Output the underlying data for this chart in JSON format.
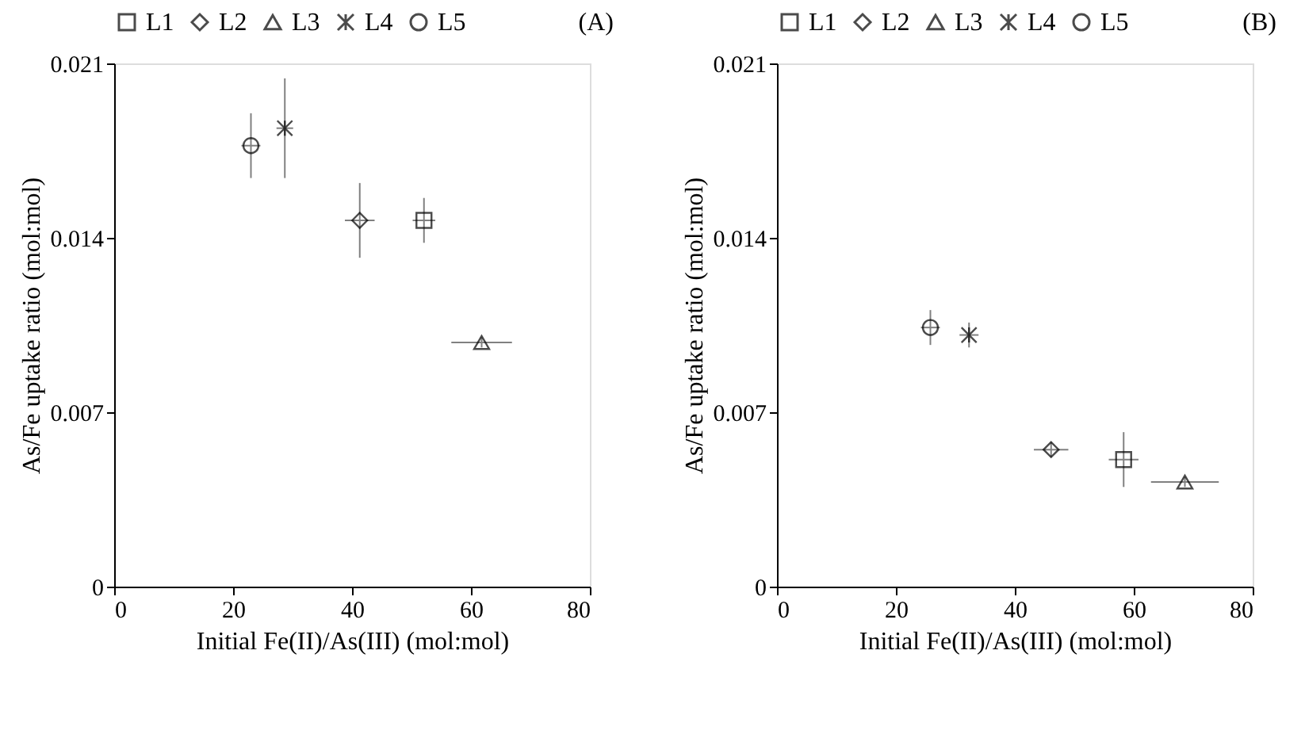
{
  "chart_data": [
    {
      "type": "scatter",
      "xlabel": "Initial Fe(II)/As(III) (mol:mol)",
      "ylabel": "As/Fe uptake ratio (mol:mol)",
      "xlim": [
        0,
        80
      ],
      "xticks": [
        0,
        20,
        40,
        60,
        80
      ],
      "ylim": [
        0,
        0.021
      ],
      "yticks": [
        0,
        0.007,
        0.014,
        0.021
      ],
      "grid": false,
      "legend": "top",
      "annotations": [
        "(A)"
      ],
      "series": [
        {
          "name": "L1",
          "marker": "square",
          "color": "#000000",
          "x": [
            52.1
          ],
          "values": [
            0.0147
          ],
          "errors": [
            0.0009
          ],
          "xerrors": [
            1.9
          ]
        },
        {
          "name": "L2",
          "marker": "diamond",
          "color": "#000000",
          "x": [
            41.3
          ],
          "values": [
            0.0147
          ],
          "errors": [
            0.0015
          ],
          "xerrors": [
            2.5
          ]
        },
        {
          "name": "L3",
          "marker": "triangle",
          "color": "#000000",
          "x": [
            61.8
          ],
          "values": [
            0.0098
          ],
          "errors": [
            0.0002
          ],
          "xerrors": [
            5.1
          ]
        },
        {
          "name": "L4",
          "marker": "cross",
          "color": "#000000",
          "x": [
            28.7
          ],
          "values": [
            0.0184
          ],
          "errors": [
            0.002
          ],
          "xerrors": [
            1.4
          ]
        },
        {
          "name": "L5",
          "marker": "circle",
          "color": "#000000",
          "x": [
            23.0
          ],
          "values": [
            0.0177
          ],
          "errors": [
            0.0013
          ],
          "xerrors": [
            1.6
          ]
        }
      ]
    },
    {
      "type": "scatter",
      "xlabel": "Initial Fe(II)/As(III) (mol:mol)",
      "ylabel": "As/Fe uptake ratio (mol:mol)",
      "xlim": [
        0,
        80
      ],
      "xticks": [
        0,
        20,
        40,
        60,
        80
      ],
      "ylim": [
        0,
        0.021
      ],
      "yticks": [
        0,
        0.007,
        0.014,
        0.021
      ],
      "grid": false,
      "legend": "top",
      "annotations": [
        "(B)"
      ],
      "series": [
        {
          "name": "L1",
          "marker": "square",
          "color": "#000000",
          "x": [
            58.3
          ],
          "values": [
            0.0051
          ],
          "errors": [
            0.0011
          ],
          "xerrors": [
            2.5
          ]
        },
        {
          "name": "L2",
          "marker": "diamond",
          "color": "#000000",
          "x": [
            46.1
          ],
          "values": [
            0.0055
          ],
          "errors": [
            0.0003
          ],
          "xerrors": [
            2.9
          ]
        },
        {
          "name": "L3",
          "marker": "triangle",
          "color": "#000000",
          "x": [
            68.6
          ],
          "values": [
            0.0042
          ],
          "errors": [
            0.0002
          ],
          "xerrors": [
            5.7
          ]
        },
        {
          "name": "L4",
          "marker": "cross",
          "color": "#000000",
          "x": [
            32.3
          ],
          "values": [
            0.0101
          ],
          "errors": [
            0.0005
          ],
          "xerrors": [
            1.6
          ]
        },
        {
          "name": "L5",
          "marker": "circle",
          "color": "#000000",
          "x": [
            25.8
          ],
          "values": [
            0.0104
          ],
          "errors": [
            0.0007
          ],
          "xerrors": [
            1.6
          ]
        }
      ]
    }
  ]
}
